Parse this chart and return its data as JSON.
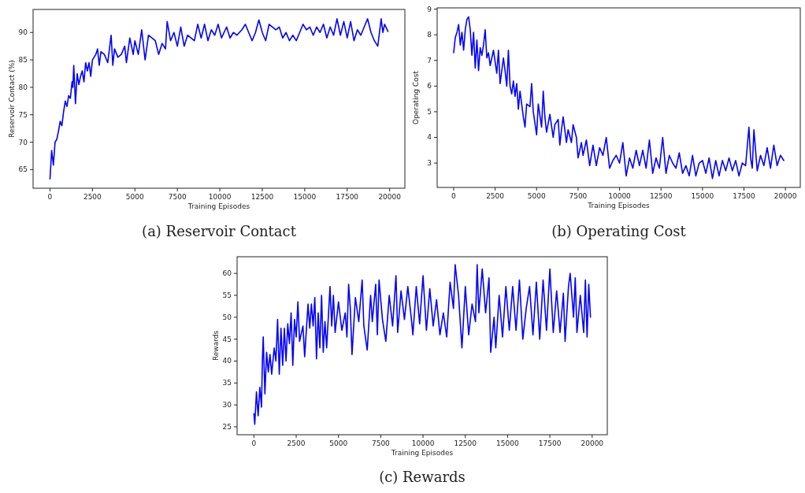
{
  "chart_data": [
    {
      "type": "line",
      "title": "(a) Reservoir Contact",
      "xlabel": "Training Episodes",
      "ylabel": "Reservoir Contact (%)",
      "xlim": [
        -995,
        20895
      ],
      "ylim": [
        61.6,
        94.2
      ],
      "xticks": [
        0,
        2500,
        5000,
        7500,
        10000,
        12500,
        15000,
        17500,
        20000
      ],
      "yticks": [
        65,
        70,
        75,
        80,
        85,
        90
      ],
      "x": [
        0,
        100,
        200,
        300,
        400,
        500,
        600,
        700,
        800,
        900,
        1000,
        1100,
        1200,
        1300,
        1350,
        1400,
        1500,
        1600,
        1700,
        1800,
        1900,
        2000,
        2100,
        2200,
        2300,
        2400,
        2500,
        2700,
        2800,
        2900,
        3000,
        3200,
        3400,
        3500,
        3600,
        3700,
        3800,
        4000,
        4200,
        4400,
        4500,
        4700,
        4900,
        5000,
        5200,
        5400,
        5600,
        5800,
        6000,
        6200,
        6400,
        6600,
        6800,
        6900,
        7100,
        7300,
        7500,
        7700,
        7900,
        8100,
        8300,
        8500,
        8700,
        8900,
        9100,
        9300,
        9500,
        9700,
        9900,
        10100,
        10400,
        10600,
        10800,
        11000,
        11300,
        11500,
        11700,
        11900,
        12100,
        12300,
        12500,
        12700,
        12900,
        13100,
        13300,
        13500,
        13700,
        13900,
        14100,
        14300,
        14500,
        14700,
        14900,
        15100,
        15300,
        15500,
        15700,
        15900,
        16100,
        16300,
        16500,
        16700,
        16900,
        17100,
        17300,
        17500,
        17700,
        17900,
        18100,
        18300,
        18500,
        18700,
        18900,
        19100,
        19300,
        19500,
        19600,
        19700,
        19900
      ],
      "series": [
        {
          "color": "#0000ff",
          "values": [
            63.3,
            68.5,
            65.8,
            70,
            70.5,
            72,
            73.8,
            73,
            75.5,
            77.5,
            76.5,
            78.5,
            78,
            81,
            80,
            84,
            77,
            82.5,
            80.5,
            82,
            83,
            81,
            84.5,
            83,
            84.5,
            82,
            85,
            86,
            87,
            84,
            86.5,
            86,
            84.5,
            87,
            89.5,
            84,
            87,
            85.5,
            86,
            87.5,
            84.5,
            89,
            86,
            88.5,
            86,
            90.5,
            85,
            89.5,
            89,
            88.5,
            86,
            88,
            87,
            92,
            88.5,
            90,
            87.5,
            91,
            87.5,
            89.5,
            89,
            88.5,
            91.5,
            89,
            91.5,
            88.5,
            90.5,
            89.5,
            91.5,
            89,
            91,
            89,
            90,
            89.5,
            90.5,
            91.5,
            90,
            88.5,
            90,
            92.3,
            90,
            88.5,
            91.5,
            91,
            90.5,
            91,
            89,
            90,
            88.5,
            89.5,
            88.5,
            90,
            91.5,
            90.5,
            91,
            89.5,
            91,
            90,
            91.5,
            89,
            91,
            89.5,
            92.5,
            89.5,
            92,
            89,
            92,
            88.5,
            90.5,
            89.5,
            91,
            92.5,
            90,
            88.5,
            87.5,
            92.5,
            90,
            91.5,
            90.2
          ]
        }
      ]
    },
    {
      "type": "line",
      "title": "(b) Operating Cost",
      "xlabel": "Training Episodes",
      "ylabel": "Operating Cost",
      "xlim": [
        -995,
        20895
      ],
      "ylim": [
        2.05,
        9.05
      ],
      "xticks": [
        0,
        2500,
        5000,
        7500,
        10000,
        12500,
        15000,
        17500,
        20000
      ],
      "yticks": [
        3,
        4,
        5,
        6,
        7,
        8,
        9
      ],
      "x": [
        0,
        100,
        200,
        300,
        400,
        500,
        600,
        700,
        800,
        900,
        1000,
        1100,
        1200,
        1300,
        1400,
        1500,
        1600,
        1700,
        1800,
        1900,
        2000,
        2100,
        2200,
        2400,
        2600,
        2700,
        2800,
        3000,
        3100,
        3200,
        3300,
        3400,
        3500,
        3600,
        3700,
        3800,
        3900,
        4000,
        4200,
        4300,
        4400,
        4600,
        4700,
        4800,
        5000,
        5100,
        5300,
        5400,
        5500,
        5600,
        5800,
        6000,
        6100,
        6300,
        6400,
        6500,
        6600,
        6800,
        6900,
        7100,
        7200,
        7400,
        7500,
        7700,
        7800,
        8000,
        8200,
        8400,
        8600,
        8800,
        9000,
        9200,
        9400,
        9600,
        9800,
        10000,
        10200,
        10400,
        10600,
        10800,
        11000,
        11200,
        11400,
        11600,
        11800,
        12000,
        12200,
        12400,
        12600,
        12800,
        13000,
        13200,
        13400,
        13600,
        13800,
        14000,
        14200,
        14400,
        14600,
        14800,
        15000,
        15200,
        15400,
        15600,
        15800,
        16000,
        16200,
        16400,
        16600,
        16800,
        17000,
        17200,
        17400,
        17600,
        17800,
        17900,
        18000,
        18100,
        18300,
        18500,
        18700,
        18900,
        19100,
        19300,
        19500,
        19700,
        19900
      ],
      "series": [
        {
          "color": "#0000ff",
          "values": [
            7.3,
            7.9,
            8.1,
            8.4,
            7.6,
            8.1,
            7.4,
            8.2,
            8.6,
            8.7,
            8.2,
            7.2,
            8.1,
            6.7,
            7.8,
            6.6,
            7.5,
            7.2,
            7.6,
            8.2,
            7.1,
            7.3,
            6.8,
            7.4,
            6.5,
            7.4,
            6.1,
            7.1,
            6.6,
            6.0,
            7.4,
            6.0,
            5.7,
            6.2,
            5.6,
            6.1,
            5.1,
            5.8,
            4.8,
            4.4,
            5.3,
            5.2,
            6.1,
            5.0,
            4.1,
            5.3,
            4.4,
            5.8,
            4.8,
            4.2,
            4.9,
            4.0,
            4.5,
            4.7,
            3.7,
            4.3,
            4.8,
            3.8,
            4.3,
            3.8,
            4.5,
            4.0,
            3.2,
            3.8,
            3.3,
            3.9,
            2.9,
            3.7,
            2.9,
            3.6,
            3.3,
            4.0,
            2.8,
            3.1,
            3.3,
            3.0,
            3.8,
            2.5,
            3.2,
            2.8,
            3.5,
            2.9,
            3.5,
            2.8,
            3.9,
            2.6,
            3.2,
            2.8,
            4.0,
            2.6,
            3.3,
            3.0,
            2.8,
            3.4,
            2.6,
            2.9,
            2.5,
            3.3,
            2.5,
            3.0,
            3.1,
            2.6,
            3.2,
            2.4,
            3.1,
            2.5,
            3.1,
            2.7,
            3.2,
            2.7,
            3.1,
            2.5,
            3.0,
            2.9,
            4.4,
            3.2,
            2.8,
            4.3,
            2.7,
            3.3,
            2.9,
            3.6,
            2.8,
            3.7,
            2.9,
            3.3,
            3.1
          ]
        }
      ]
    },
    {
      "type": "line",
      "title": "(c) Rewards",
      "xlabel": "Training Episodes",
      "ylabel": "Rewards",
      "xlim": [
        -995,
        20895
      ],
      "ylim": [
        23.2,
        63.8
      ],
      "xticks": [
        0,
        2500,
        5000,
        7500,
        10000,
        12500,
        15000,
        17500,
        20000
      ],
      "yticks": [
        25,
        30,
        35,
        40,
        45,
        50,
        55,
        60
      ],
      "x": [
        0,
        50,
        150,
        250,
        350,
        450,
        500,
        550,
        650,
        750,
        850,
        950,
        1050,
        1200,
        1300,
        1400,
        1500,
        1600,
        1700,
        1800,
        1900,
        2000,
        2100,
        2200,
        2300,
        2400,
        2500,
        2600,
        2700,
        2900,
        3000,
        3200,
        3300,
        3400,
        3500,
        3600,
        3700,
        3800,
        3900,
        4000,
        4100,
        4200,
        4300,
        4500,
        4600,
        4700,
        4800,
        5000,
        5200,
        5400,
        5500,
        5600,
        5700,
        5800,
        6000,
        6200,
        6400,
        6500,
        6700,
        6900,
        7000,
        7200,
        7300,
        7400,
        7600,
        7800,
        8000,
        8200,
        8400,
        8500,
        8700,
        8900,
        9100,
        9300,
        9400,
        9600,
        9800,
        10000,
        10200,
        10400,
        10600,
        10800,
        11000,
        11200,
        11400,
        11600,
        11800,
        11900,
        12100,
        12300,
        12500,
        12700,
        12900,
        13100,
        13200,
        13300,
        13500,
        13700,
        13900,
        14000,
        14200,
        14300,
        14500,
        14700,
        14900,
        15100,
        15300,
        15500,
        15700,
        15900,
        16100,
        16300,
        16500,
        16700,
        16900,
        17100,
        17300,
        17500,
        17700,
        17900,
        18100,
        18300,
        18400,
        18600,
        18700,
        18900,
        19000,
        19100,
        19300,
        19500,
        19600,
        19700,
        19800,
        19900
      ],
      "series": [
        {
          "color": "#0000ff",
          "values": [
            28,
            25.6,
            33,
            27.5,
            34,
            29.5,
            40,
            45.5,
            32.5,
            42,
            37.5,
            41.5,
            37,
            43,
            40,
            49.5,
            37,
            47.5,
            39,
            47.5,
            40,
            48.5,
            44,
            51,
            39,
            49.5,
            45.5,
            53.5,
            44.5,
            48,
            41,
            53,
            47.5,
            53,
            48,
            54.5,
            40.5,
            51,
            43,
            55,
            42,
            49,
            43,
            57,
            48,
            55,
            46.5,
            53.5,
            47,
            51,
            45.5,
            57.5,
            52,
            41.5,
            54.5,
            49,
            58.5,
            48,
            42.5,
            55,
            49,
            57.5,
            46,
            58.5,
            49.5,
            44.5,
            55,
            48,
            59.5,
            46.5,
            56,
            49.5,
            57,
            50,
            46,
            57,
            48.5,
            59.5,
            47,
            56.5,
            48,
            54,
            46,
            51,
            45.5,
            58,
            52,
            62,
            55,
            43,
            57,
            46,
            53,
            49,
            62,
            51,
            61,
            51,
            59,
            42,
            50,
            43,
            55,
            45.5,
            57,
            47,
            57,
            47,
            58.5,
            45,
            52,
            57,
            46,
            58,
            45,
            58.5,
            47,
            61,
            46.5,
            56,
            46.5,
            55.5,
            44.5,
            57,
            60,
            50,
            59,
            46.5,
            55,
            46.5,
            58.5,
            45.5,
            57.5,
            50
          ]
        }
      ]
    }
  ]
}
